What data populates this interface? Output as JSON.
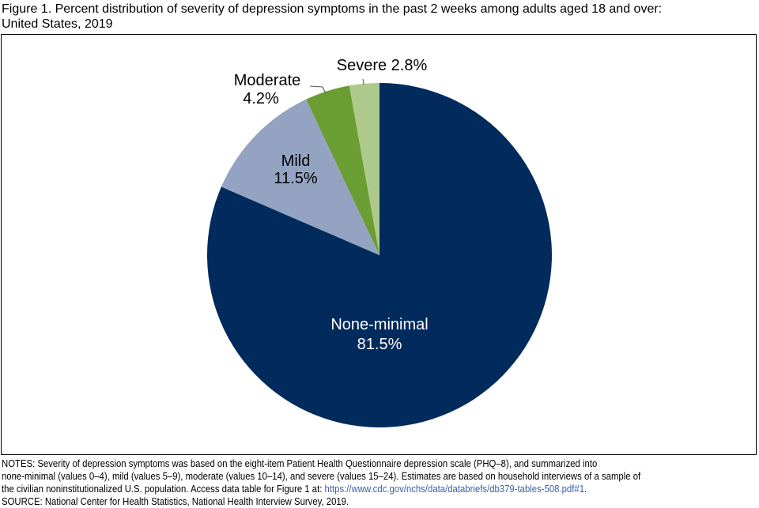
{
  "chart_data": {
    "type": "pie",
    "title_line1": "Figure 1. Percent distribution of severity of depression symptoms in the past 2 weeks among adults aged 18 and over:",
    "title_line2": "United States, 2019",
    "start": "top",
    "direction": "clockwise",
    "slices": [
      {
        "label": "None-minimal",
        "value": 81.5,
        "value_label": "81.5%",
        "color": "#002b5c"
      },
      {
        "label": "Mild",
        "value": 11.5,
        "value_label": "11.5%",
        "color": "#95a3c3"
      },
      {
        "label": "Moderate",
        "value": 4.2,
        "value_label": "4.2%",
        "color": "#6a9e32"
      },
      {
        "label": "Severe",
        "value": 2.8,
        "value_label": "2.8%",
        "color": "#adc98b"
      }
    ]
  },
  "notes": {
    "line1": "NOTES: Severity of depression symptoms was based on the eight-item Patient Health Questionnaire depression scale (PHQ–8), and summarized into",
    "line2": "none-minimal (values 0–4), mild (values 5–9), moderate (values 10–14), and severe (values 15–24). Estimates are based on household interviews of a sample of",
    "line3": "the civilian noninstitutionalized U.S. population. Access data table for Figure 1 at: ",
    "link": "https://www.cdc.gov/nchs/data/databriefs/db379-tables-508.pdf#1",
    "line3_end": ".",
    "source": "SOURCE: National Center for Health Statistics, National Health Interview Survey, 2019."
  }
}
